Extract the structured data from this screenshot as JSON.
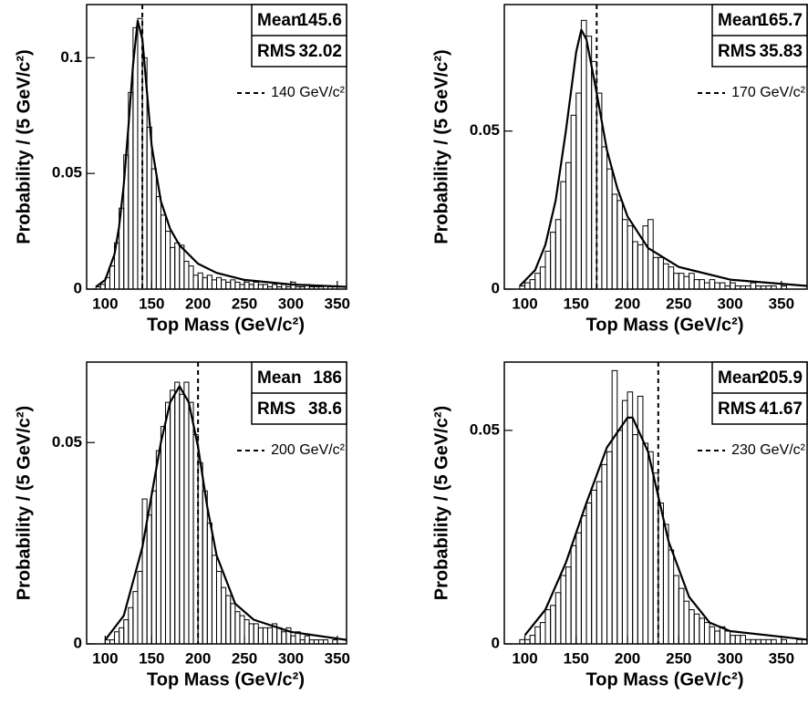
{
  "chart_data": [
    {
      "type": "histogram",
      "xlabel": "Top Mass (GeV/c²)",
      "ylabel": "Probability / (5 GeV/c²)",
      "color": "#000000",
      "xlim": [
        80,
        360
      ],
      "ylim": [
        0,
        0.123
      ],
      "xticks": [
        100,
        150,
        200,
        250,
        300,
        350
      ],
      "yticks": [
        0,
        0.05,
        0.1
      ],
      "bins": [
        85,
        90,
        95,
        100,
        105,
        110,
        115,
        120,
        125,
        130,
        135,
        140,
        145,
        150,
        155,
        160,
        165,
        170,
        175,
        180,
        185,
        190,
        195,
        200,
        205,
        210,
        215,
        220,
        225,
        230,
        235,
        240,
        245,
        250,
        255,
        260,
        265,
        270,
        275,
        280,
        285,
        290,
        295,
        300,
        305,
        310,
        315,
        320,
        325,
        330,
        335,
        340,
        345,
        350,
        355,
        360
      ],
      "values": [
        0,
        0.001,
        0.002,
        0.005,
        0.01,
        0.02,
        0.035,
        0.058,
        0.085,
        0.113,
        0.117,
        0.1,
        0.07,
        0.052,
        0.04,
        0.032,
        0.025,
        0.018,
        0.02,
        0.019,
        0.012,
        0.01,
        0.006,
        0.007,
        0.005,
        0.006,
        0.004,
        0.005,
        0.004,
        0.003,
        0.004,
        0.003,
        0.002,
        0.003,
        0.002,
        0.003,
        0.002,
        0.002,
        0.001,
        0.002,
        0.001,
        0.002,
        0.001,
        0.003,
        0.001,
        0.001,
        0.002,
        0.001,
        0.001,
        0.001,
        0,
        0.001,
        0,
        0,
        0
      ],
      "fit": {
        "x": [
          90,
          100,
          110,
          115,
          120,
          125,
          130,
          135,
          140,
          145,
          150,
          160,
          170,
          180,
          200,
          220,
          250,
          300,
          360
        ],
        "values": [
          0.001,
          0.004,
          0.015,
          0.027,
          0.045,
          0.07,
          0.097,
          0.116,
          0.108,
          0.085,
          0.062,
          0.038,
          0.026,
          0.019,
          0.011,
          0.007,
          0.004,
          0.002,
          0.001
        ]
      },
      "true_mass": {
        "value": 140,
        "label": "140 GeV/c²"
      },
      "stats": [
        {
          "name": "Mean",
          "value": 145.6
        },
        {
          "name": "RMS",
          "value": 32.02
        }
      ]
    },
    {
      "type": "histogram",
      "xlabel": "Top Mass (GeV/c²)",
      "ylabel": "Probability / (5 GeV/c²)",
      "color": "#000000",
      "xlim": [
        80,
        375
      ],
      "ylim": [
        0,
        0.09
      ],
      "xticks": [
        100,
        150,
        200,
        250,
        300,
        350
      ],
      "yticks": [
        0,
        0.05
      ],
      "bins": [
        85,
        90,
        95,
        100,
        105,
        110,
        115,
        120,
        125,
        130,
        135,
        140,
        145,
        150,
        155,
        160,
        165,
        170,
        175,
        180,
        185,
        190,
        195,
        200,
        205,
        210,
        215,
        220,
        225,
        230,
        235,
        240,
        245,
        250,
        255,
        260,
        265,
        270,
        275,
        280,
        285,
        290,
        295,
        300,
        305,
        310,
        315,
        320,
        325,
        330,
        335,
        340,
        345,
        350,
        355,
        360,
        365,
        370,
        375
      ],
      "values": [
        0,
        0,
        0.001,
        0.002,
        0.003,
        0.005,
        0.007,
        0.012,
        0.018,
        0.022,
        0.034,
        0.04,
        0.055,
        0.062,
        0.085,
        0.08,
        0.072,
        0.062,
        0.045,
        0.038,
        0.03,
        0.028,
        0.022,
        0.02,
        0.015,
        0.014,
        0.02,
        0.022,
        0.01,
        0.01,
        0.008,
        0.007,
        0.005,
        0.005,
        0.004,
        0.005,
        0.003,
        0.003,
        0.002,
        0.003,
        0.002,
        0.002,
        0.001,
        0.002,
        0.001,
        0.001,
        0.001,
        0.002,
        0.001,
        0.001,
        0.001,
        0.001,
        0,
        0.001,
        0,
        0,
        0,
        0
      ],
      "fit": {
        "x": [
          95,
          110,
          120,
          130,
          140,
          150,
          155,
          160,
          170,
          180,
          190,
          200,
          220,
          250,
          300,
          375
        ],
        "values": [
          0.001,
          0.006,
          0.014,
          0.028,
          0.05,
          0.075,
          0.082,
          0.079,
          0.062,
          0.044,
          0.032,
          0.023,
          0.013,
          0.007,
          0.003,
          0.001
        ]
      },
      "true_mass": {
        "value": 170,
        "label": "170 GeV/c²"
      },
      "stats": [
        {
          "name": "Mean",
          "value": 165.7
        },
        {
          "name": "RMS",
          "value": 35.83
        }
      ]
    },
    {
      "type": "histogram",
      "xlabel": "Top Mass (GeV/c²)",
      "ylabel": "Probability / (5 GeV/c²)",
      "color": "#000000",
      "xlim": [
        80,
        360
      ],
      "ylim": [
        0,
        0.07
      ],
      "xticks": [
        100,
        150,
        200,
        250,
        300,
        350
      ],
      "yticks": [
        0,
        0.05
      ],
      "bins": [
        85,
        90,
        95,
        100,
        105,
        110,
        115,
        120,
        125,
        130,
        135,
        140,
        145,
        150,
        155,
        160,
        165,
        170,
        175,
        180,
        185,
        190,
        195,
        200,
        205,
        210,
        215,
        220,
        225,
        230,
        235,
        240,
        245,
        250,
        255,
        260,
        265,
        270,
        275,
        280,
        285,
        290,
        295,
        300,
        305,
        310,
        315,
        320,
        325,
        330,
        335,
        340,
        345,
        350,
        355,
        360
      ],
      "values": [
        0,
        0,
        0,
        0.001,
        0.001,
        0.003,
        0.004,
        0.006,
        0.009,
        0.013,
        0.018,
        0.036,
        0.032,
        0.038,
        0.048,
        0.054,
        0.06,
        0.063,
        0.065,
        0.062,
        0.065,
        0.06,
        0.052,
        0.045,
        0.038,
        0.03,
        0.022,
        0.018,
        0.014,
        0.012,
        0.01,
        0.008,
        0.007,
        0.006,
        0.005,
        0.005,
        0.004,
        0.004,
        0.004,
        0.005,
        0.004,
        0.003,
        0.004,
        0.002,
        0.003,
        0.001,
        0.002,
        0.001,
        0.001,
        0.001,
        0.001,
        0,
        0.001,
        0,
        0
      ],
      "fit": {
        "x": [
          100,
          120,
          140,
          160,
          170,
          180,
          190,
          200,
          210,
          220,
          240,
          260,
          300,
          360
        ],
        "values": [
          0.001,
          0.007,
          0.024,
          0.05,
          0.06,
          0.064,
          0.06,
          0.049,
          0.034,
          0.022,
          0.01,
          0.006,
          0.003,
          0.001
        ]
      },
      "true_mass": {
        "value": 200,
        "label": "200 GeV/c²"
      },
      "stats": [
        {
          "name": "Mean",
          "value": 186
        },
        {
          "name": "RMS",
          "value": 38.6
        }
      ]
    },
    {
      "type": "histogram",
      "xlabel": "Top Mass (GeV/c²)",
      "ylabel": "Probability / (5 GeV/c²)",
      "color": "#000000",
      "xlim": [
        80,
        375
      ],
      "ylim": [
        0,
        0.066
      ],
      "xticks": [
        100,
        150,
        200,
        250,
        300,
        350
      ],
      "yticks": [
        0,
        0.05
      ],
      "bins": [
        85,
        90,
        95,
        100,
        105,
        110,
        115,
        120,
        125,
        130,
        135,
        140,
        145,
        150,
        155,
        160,
        165,
        170,
        175,
        180,
        185,
        190,
        195,
        200,
        205,
        210,
        215,
        220,
        225,
        230,
        235,
        240,
        245,
        250,
        255,
        260,
        265,
        270,
        275,
        280,
        285,
        290,
        295,
        300,
        305,
        310,
        315,
        320,
        325,
        330,
        335,
        340,
        345,
        350,
        355,
        360,
        365,
        370,
        375
      ],
      "values": [
        0,
        0,
        0.001,
        0.001,
        0.002,
        0.004,
        0.005,
        0.008,
        0.009,
        0.012,
        0.016,
        0.018,
        0.023,
        0.026,
        0.03,
        0.033,
        0.036,
        0.038,
        0.042,
        0.045,
        0.064,
        0.05,
        0.057,
        0.059,
        0.049,
        0.058,
        0.047,
        0.045,
        0.04,
        0.033,
        0.028,
        0.022,
        0.016,
        0.013,
        0.01,
        0.008,
        0.007,
        0.006,
        0.005,
        0.004,
        0.003,
        0.004,
        0.003,
        0.002,
        0.002,
        0.002,
        0.001,
        0.001,
        0.001,
        0.001,
        0.001,
        0.001,
        0,
        0.001,
        0,
        0,
        0.001,
        0
      ],
      "fit": {
        "x": [
          100,
          120,
          140,
          160,
          180,
          200,
          205,
          220,
          240,
          260,
          280,
          300,
          375
        ],
        "values": [
          0.002,
          0.008,
          0.019,
          0.033,
          0.046,
          0.053,
          0.053,
          0.045,
          0.024,
          0.011,
          0.005,
          0.003,
          0.001
        ]
      },
      "true_mass": {
        "value": 230,
        "label": "230 GeV/c²"
      },
      "stats": [
        {
          "name": "Mean",
          "value": 205.9
        },
        {
          "name": "RMS",
          "value": 41.67
        }
      ]
    }
  ]
}
